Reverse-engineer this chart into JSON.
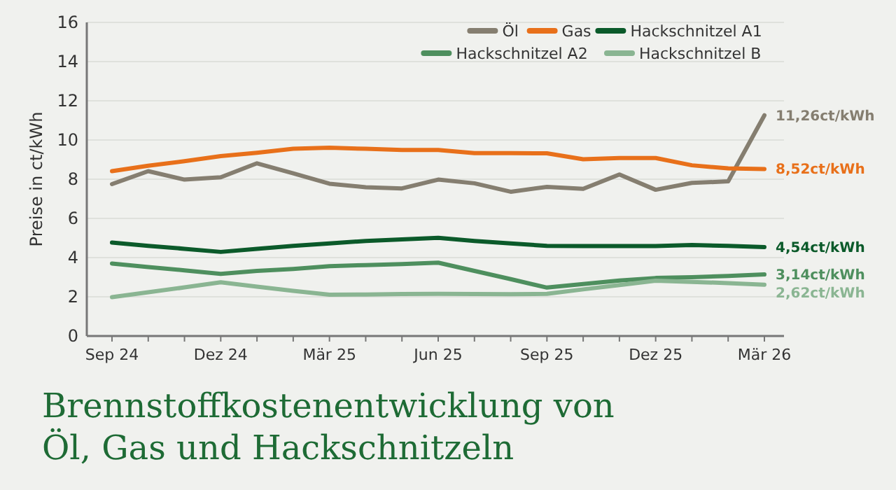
{
  "chart_data": {
    "type": "line",
    "title": "Brennstoffkostenentwicklung von Öl, Gas und Hackschnitzeln",
    "ylabel": "Preise in ct/kWh",
    "categories": [
      "Sep 24",
      null,
      null,
      "Dez 24",
      null,
      null,
      "Mär 25",
      null,
      null,
      "Jun 25",
      null,
      null,
      "Sep 25",
      null,
      null,
      "Dez 25",
      null,
      null,
      "Mär 26"
    ],
    "series": [
      {
        "name": "Öl",
        "color": "#857e70",
        "values": [
          7.75,
          8.41,
          7.98,
          8.1,
          8.81,
          8.3,
          7.77,
          7.59,
          7.53,
          7.98,
          7.79,
          7.36,
          7.61,
          7.51,
          8.24,
          7.46,
          7.81,
          7.89,
          11.26
        ]
      },
      {
        "name": "Gas",
        "color": "#e8701a",
        "values": [
          8.41,
          8.69,
          8.92,
          9.18,
          9.35,
          9.55,
          9.61,
          9.55,
          9.49,
          9.49,
          9.33,
          9.33,
          9.32,
          9.02,
          9.08,
          9.08,
          8.71,
          8.55,
          8.52
        ]
      },
      {
        "name": "Hackschnitzel A1",
        "color": "#0b5a2a",
        "values": [
          4.77,
          4.6,
          4.45,
          4.29,
          4.45,
          4.6,
          4.72,
          4.85,
          4.93,
          5.01,
          4.85,
          4.72,
          4.6,
          4.59,
          4.59,
          4.59,
          4.64,
          4.6,
          4.54
        ]
      },
      {
        "name": "Hackschnitzel A2",
        "color": "#4e8f5e",
        "values": [
          3.7,
          3.52,
          3.35,
          3.17,
          3.32,
          3.42,
          3.56,
          3.62,
          3.67,
          3.74,
          3.32,
          2.9,
          2.47,
          2.65,
          2.83,
          2.96,
          3.0,
          3.06,
          3.14
        ]
      },
      {
        "name": "Hackschnitzel B",
        "color": "#8ab592",
        "values": [
          1.98,
          2.23,
          2.48,
          2.74,
          2.52,
          2.3,
          2.11,
          2.12,
          2.14,
          2.15,
          2.14,
          2.13,
          2.15,
          2.38,
          2.6,
          2.82,
          2.76,
          2.7,
          2.62
        ]
      }
    ],
    "annotations": [
      {
        "text": "11,26ct/kWh",
        "x": "Mär 26",
        "y": 11.26
      },
      {
        "text": "8,52ct/kWh",
        "x": "Mär 26",
        "y": 8.52
      },
      {
        "text": "4,54ct/kWh",
        "x": "Mär 26",
        "y": 4.54
      },
      {
        "text": "3,14ct/kWh",
        "x": "Mär 26",
        "y": 3.14
      },
      {
        "text": "2,62ct/kWh",
        "x": "Mär 26",
        "y": 2.62
      }
    ],
    "ylim": [
      0,
      16
    ],
    "yticks": [
      0,
      2,
      4,
      6,
      8,
      10,
      12,
      14,
      16
    ],
    "grid": "y",
    "legend": "top right",
    "line_style": "solid",
    "marker": "none"
  }
}
